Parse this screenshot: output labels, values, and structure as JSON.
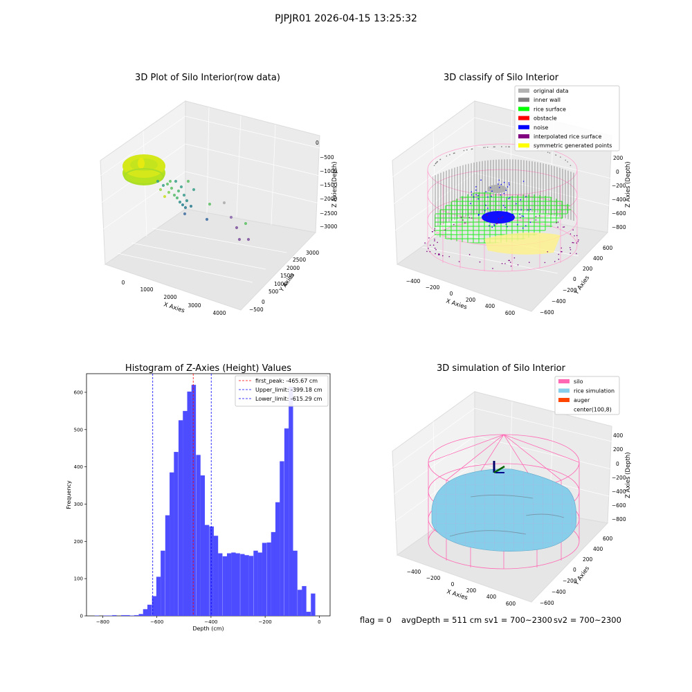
{
  "figure": {
    "suptitle": "PJPJR01 2026-04-15 13:25:32",
    "footer": {
      "flag": "flag = 0",
      "avg_depth": "avgDepth = 511 cm",
      "sv1": "sv1 = 700~2300",
      "sv2": "sv2 = 700~2300"
    }
  },
  "chart_data": [
    {
      "type": "scatter",
      "title": "3D Plot of Silo Interior(row data)",
      "xlabel": "X Axies",
      "ylabel": "Y Axies",
      "zlabel": "Z Axies (Depth)",
      "x_ticks": [
        "0",
        "1000",
        "2000",
        "3000",
        "4000"
      ],
      "y_ticks": [
        "−500",
        "0",
        "500",
        "1000",
        "1500",
        "2000",
        "2500",
        "3000"
      ],
      "z_ticks": [
        "0",
        "−500",
        "−1000",
        "−1500",
        "−2000",
        "−2500",
        "−3000"
      ],
      "xlim": [
        -500,
        4500
      ],
      "ylim": [
        -500,
        3200
      ],
      "zlim": [
        -3200,
        100
      ],
      "colors": {
        "cluster": "#c8e020",
        "far": "#3aa08a",
        "outlier": "#7d4f9c"
      }
    },
    {
      "type": "scatter",
      "title": "3D classify of Silo Interior",
      "xlabel": "X Axies",
      "ylabel": "Y Axies",
      "zlabel": "Z Axies (Depth)",
      "x_ticks": [
        "−400",
        "−200",
        "0",
        "200",
        "400",
        "600"
      ],
      "y_ticks": [
        "−600",
        "−400",
        "−200",
        "0",
        "200",
        "400",
        "600"
      ],
      "z_ticks": [
        "200",
        "0",
        "−200",
        "−400",
        "−600",
        "−800"
      ],
      "xlim": [
        -500,
        700
      ],
      "ylim": [
        -650,
        650
      ],
      "zlim": [
        -900,
        250
      ],
      "legend": [
        {
          "label": "original data",
          "color": "#b3b3b3"
        },
        {
          "label": "inner wall",
          "color": "#808080"
        },
        {
          "label": "rice surface",
          "color": "#00ff00"
        },
        {
          "label": "obstacle",
          "color": "#ff0000"
        },
        {
          "label": "noise",
          "color": "#0000ff"
        },
        {
          "label": "interpolated rice surface",
          "color": "#800080"
        },
        {
          "label": "symmetric generated points",
          "color": "#ffff00"
        }
      ],
      "legend_loc": "upper right"
    },
    {
      "type": "bar",
      "title": "Histogram of Z-Axies (Height) Values",
      "xlabel": "Depth (cm)",
      "ylabel": "Frequency",
      "xlim": [
        -860,
        40
      ],
      "ylim": [
        0,
        650
      ],
      "x_ticks": [
        -800,
        -600,
        -400,
        -200,
        0
      ],
      "x_tick_labels": [
        "−800",
        "−600",
        "−400",
        "−200",
        "0"
      ],
      "y_ticks": [
        0,
        100,
        200,
        300,
        400,
        500,
        600
      ],
      "bar_color": "#4d4dff",
      "bin_width": 16.3,
      "bins": [
        {
          "x": -830,
          "v": 1
        },
        {
          "x": -814,
          "v": 0
        },
        {
          "x": -798,
          "v": 1
        },
        {
          "x": -781,
          "v": 1
        },
        {
          "x": -765,
          "v": 2
        },
        {
          "x": -749,
          "v": 0
        },
        {
          "x": -732,
          "v": 2
        },
        {
          "x": -716,
          "v": 2
        },
        {
          "x": -700,
          "v": 1
        },
        {
          "x": -684,
          "v": 2
        },
        {
          "x": -667,
          "v": 5
        },
        {
          "x": -651,
          "v": 18
        },
        {
          "x": -635,
          "v": 30
        },
        {
          "x": -618,
          "v": 53
        },
        {
          "x": -602,
          "v": 105
        },
        {
          "x": -586,
          "v": 175
        },
        {
          "x": -569,
          "v": 270
        },
        {
          "x": -553,
          "v": 385
        },
        {
          "x": -537,
          "v": 440
        },
        {
          "x": -520,
          "v": 525
        },
        {
          "x": -504,
          "v": 550
        },
        {
          "x": -488,
          "v": 602
        },
        {
          "x": -472,
          "v": 620
        },
        {
          "x": -455,
          "v": 432
        },
        {
          "x": -439,
          "v": 377
        },
        {
          "x": -423,
          "v": 244
        },
        {
          "x": -406,
          "v": 240
        },
        {
          "x": -390,
          "v": 215
        },
        {
          "x": -374,
          "v": 168
        },
        {
          "x": -357,
          "v": 160
        },
        {
          "x": -341,
          "v": 168
        },
        {
          "x": -325,
          "v": 170
        },
        {
          "x": -309,
          "v": 168
        },
        {
          "x": -292,
          "v": 166
        },
        {
          "x": -276,
          "v": 163
        },
        {
          "x": -260,
          "v": 161
        },
        {
          "x": -243,
          "v": 175
        },
        {
          "x": -227,
          "v": 170
        },
        {
          "x": -211,
          "v": 196
        },
        {
          "x": -194,
          "v": 197
        },
        {
          "x": -178,
          "v": 225
        },
        {
          "x": -162,
          "v": 305
        },
        {
          "x": -146,
          "v": 415
        },
        {
          "x": -129,
          "v": 503
        },
        {
          "x": -113,
          "v": 615
        },
        {
          "x": -97,
          "v": 175
        },
        {
          "x": -80,
          "v": 70
        },
        {
          "x": -64,
          "v": 80
        },
        {
          "x": -48,
          "v": 11
        },
        {
          "x": -31,
          "v": 60
        },
        {
          "x": -15,
          "v": 0
        }
      ],
      "vlines": [
        {
          "x": -465.67,
          "color": "#ff0000",
          "label": "first_peak: -465.67 cm"
        },
        {
          "x": -399.18,
          "color": "#0000ff",
          "label": "Upper_limit: -399.18 cm"
        },
        {
          "x": -615.29,
          "color": "#0000ff",
          "label": "Lower_limit: -615.29 cm"
        }
      ],
      "legend_loc": "upper right"
    },
    {
      "type": "scatter",
      "title": "3D simulation of Silo Interior",
      "xlabel": "X Axies",
      "ylabel": "Y Axies",
      "zlabel": "Z Axies (Depth)",
      "x_ticks": [
        "−400",
        "−200",
        "0",
        "200",
        "400",
        "600"
      ],
      "y_ticks": [
        "−600",
        "−400",
        "−200",
        "0",
        "200",
        "400",
        "600"
      ],
      "z_ticks": [
        "400",
        "200",
        "0",
        "−200",
        "−400",
        "−600",
        "−800"
      ],
      "legend": [
        {
          "label": "silo",
          "color": "#ff69b4"
        },
        {
          "label": "rice simulation",
          "color": "#87ceeb"
        },
        {
          "label": "auger",
          "color": "#ff4500"
        },
        {
          "label": "center(100,8)",
          "color": ""
        }
      ],
      "legend_loc": "upper right"
    }
  ]
}
